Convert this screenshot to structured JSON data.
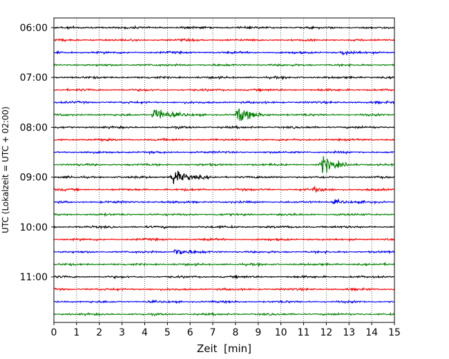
{
  "chart_data": {
    "type": "line",
    "subtype": "helicorder",
    "title": "",
    "xlabel": "Zeit  [min]",
    "ylabel": "UTC (Lokalzeit = UTC + 02:00)",
    "xlim": [
      0,
      15
    ],
    "x_ticks": [
      0,
      1,
      2,
      3,
      4,
      5,
      6,
      7,
      8,
      9,
      10,
      11,
      12,
      13,
      14,
      15
    ],
    "x_tick_labels": [
      "0",
      "1",
      "2",
      "3",
      "4",
      "5",
      "6",
      "7",
      "8",
      "9",
      "10",
      "11",
      "12",
      "13",
      "14",
      "15"
    ],
    "vertical_grid": "dotted, every minute",
    "trace_interval_minutes": 15,
    "trace_colors": [
      "#000000",
      "#ff0000",
      "#0000ff",
      "#008000"
    ],
    "row_times": [
      "06:00",
      "06:15",
      "06:30",
      "06:45",
      "07:00",
      "07:15",
      "07:30",
      "07:45",
      "08:00",
      "08:15",
      "08:30",
      "08:45",
      "09:00",
      "09:15",
      "09:30",
      "09:45",
      "10:00",
      "10:15",
      "10:30",
      "10:45",
      "11:00",
      "11:15",
      "11:30",
      "11:45"
    ],
    "y_tick_labels": [
      "06:00",
      "07:00",
      "08:00",
      "09:00",
      "10:00",
      "11:00"
    ],
    "y_tick_rows": [
      0,
      4,
      8,
      12,
      16,
      20
    ],
    "events": [
      {
        "row": "07:45",
        "minute": 4.4,
        "amplitude": "large"
      },
      {
        "row": "07:45",
        "minute": 8.1,
        "amplitude": "large"
      },
      {
        "row": "09:00",
        "minute": 5.2,
        "amplitude": "large"
      },
      {
        "row": "08:45",
        "minute": 11.8,
        "amplitude": "large"
      },
      {
        "row": "10:30",
        "minute": 5.3,
        "amplitude": "medium"
      },
      {
        "row": "06:30",
        "minute": 12.7,
        "amplitude": "small"
      },
      {
        "row": "09:30",
        "minute": 12.3,
        "amplitude": "small"
      },
      {
        "row": "09:15",
        "minute": 11.4,
        "amplitude": "small"
      }
    ]
  }
}
